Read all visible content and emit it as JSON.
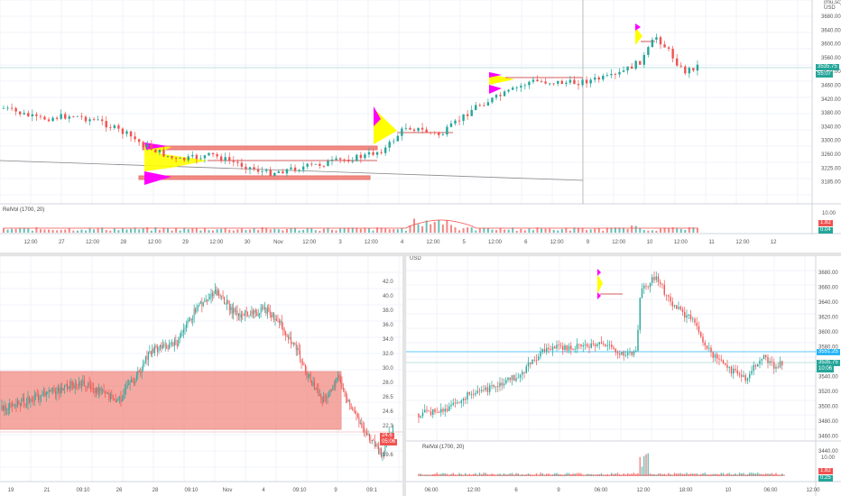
{
  "colors": {
    "up": "#26a69a",
    "down": "#ef5350",
    "grid": "#f0f3fa",
    "accent": "#26a69a",
    "yellow": "#ffff00",
    "magenta": "#ff00ff",
    "zone": "#f28b82"
  },
  "top_pane": {
    "currency_top": "(mu,sc)",
    "currency": "USD",
    "price_labels": [
      "3680.00",
      "3640.00",
      "3600.00",
      "3560.00",
      "3520.00",
      "3460.00",
      "3420.00",
      "3380.00",
      "3340.00",
      "3300.00",
      "3260.00",
      "3225.00",
      "3185.00"
    ],
    "last_price": "3535.75",
    "countdown": "55:07",
    "indicator": {
      "label": "RelVol (1700, 20)",
      "scale_top": "10.00",
      "val1": "1.82",
      "val2": "0.04"
    },
    "time_labels": [
      "12:00",
      "27",
      "12:00",
      "28",
      "12:00",
      "29",
      "12:00",
      "30",
      "Nov",
      "12:00",
      "3",
      "12:00",
      "4",
      "12:00",
      "5",
      "12:00",
      "6",
      "12:00",
      "9",
      "12:00",
      "10",
      "12:00",
      "11",
      "12:00",
      "12"
    ]
  },
  "bottom_left": {
    "price_labels": [
      "42.0",
      "40.0",
      "38.0",
      "36.0",
      "34.0",
      "32.0",
      "30.0",
      "28.0",
      "26.5",
      "24.6",
      "22.3",
      "21.1",
      "19.6"
    ],
    "last_price": "24.6",
    "countdown": "05:06",
    "time_labels": [
      "19",
      "21",
      "09:10",
      "26",
      "28",
      "09:10",
      "Nov",
      "4",
      "09:10",
      "9",
      "09:1"
    ]
  },
  "bottom_right": {
    "currency": "USD",
    "price_labels": [
      "3680.00",
      "3660.00",
      "3640.00",
      "3620.00",
      "3600.00",
      "3580.00",
      "3560.00",
      "3540.00",
      "3520.00",
      "3500.00",
      "3480.00",
      "3460.00",
      "3440.00"
    ],
    "level_price": "3551.25",
    "last_price": "3535.75",
    "countdown": "10:06",
    "indicator": {
      "label": "RelVol (1700, 20)",
      "scale_top": "10.00",
      "val1": "1.82",
      "val2": "0.25"
    },
    "time_labels": [
      "06:00",
      "12:00",
      "6",
      "9",
      "06:00",
      "12:00",
      "18:00",
      "10",
      "06:00",
      "12:00"
    ]
  }
}
